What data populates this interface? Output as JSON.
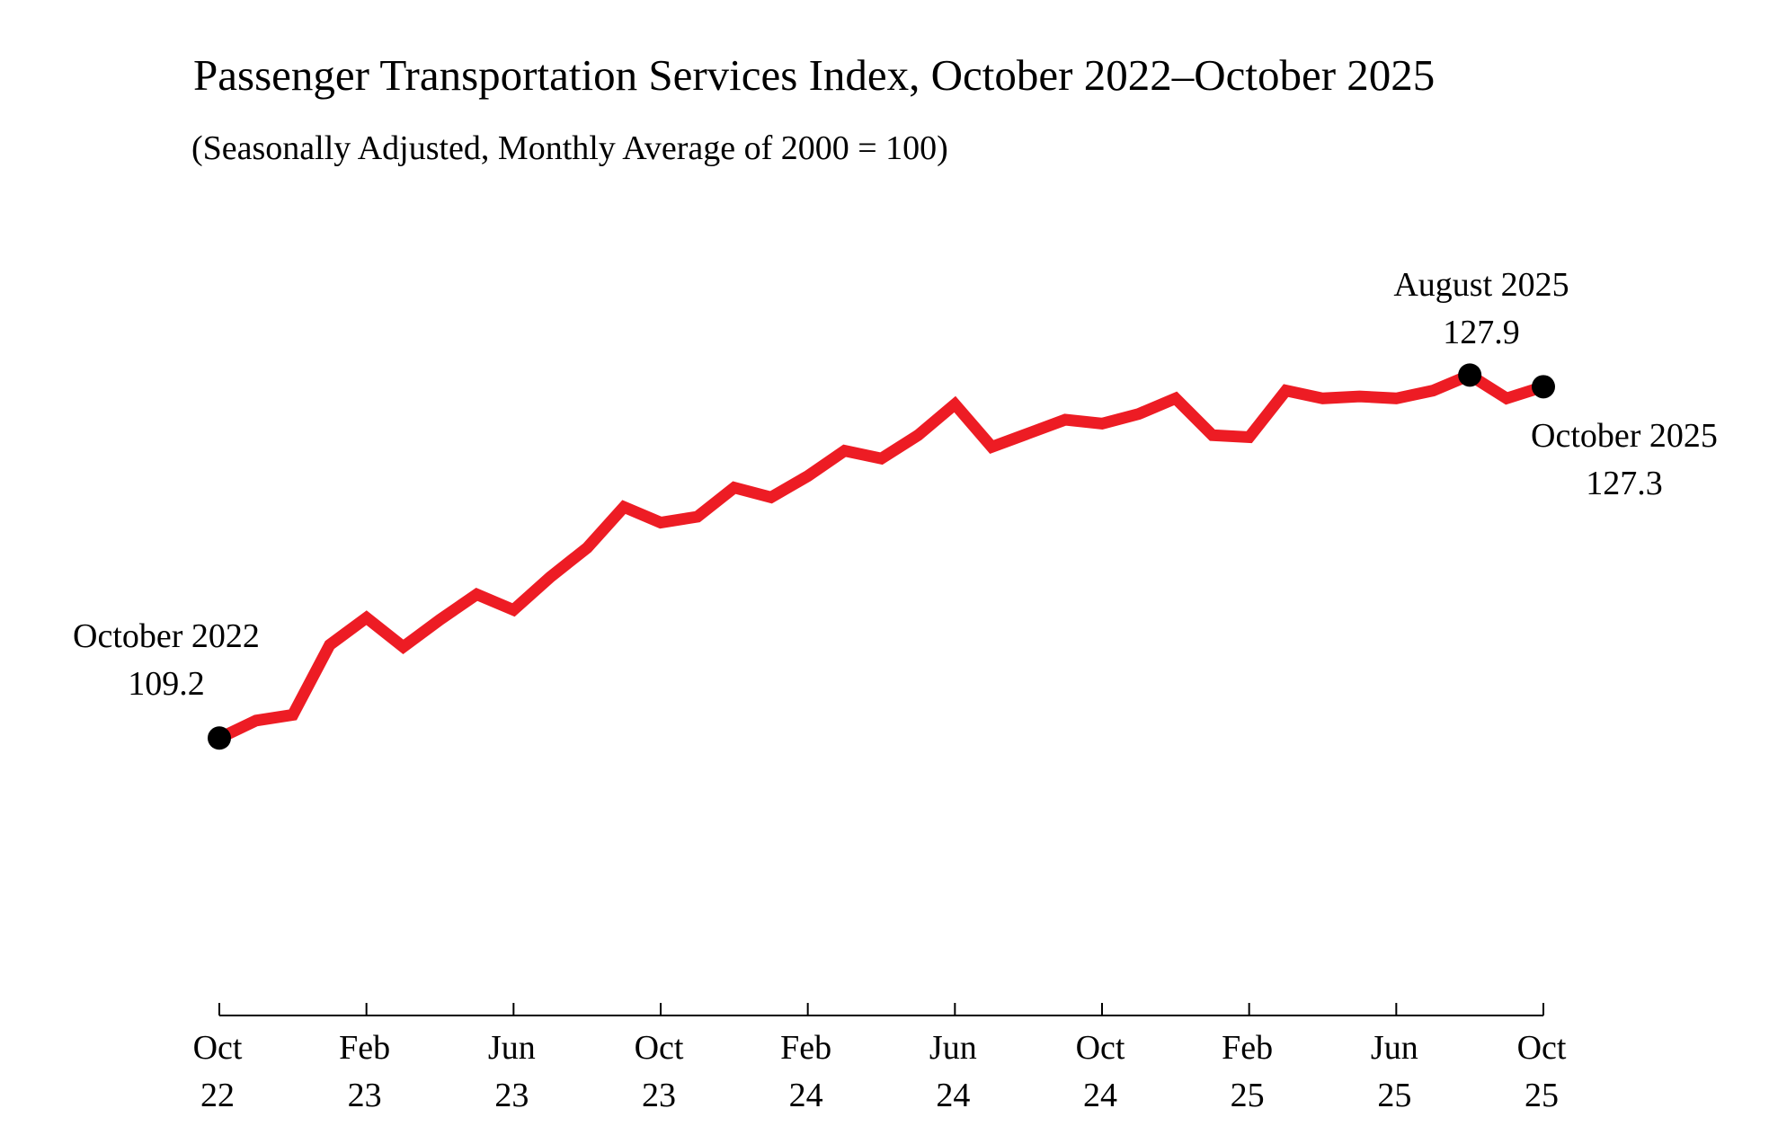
{
  "chart_data": {
    "type": "line",
    "title": "Passenger Transportation Services Index, October 2022–October 2025",
    "subtitle": "(Seasonally Adjusted, Monthly Average of 2000 = 100)",
    "xlabel": "",
    "ylabel": "",
    "ylim": [
      95,
      130
    ],
    "grid": false,
    "line_color": "#ED1C24",
    "marker_color": "#000000",
    "x": [
      "2022-10",
      "2022-11",
      "2022-12",
      "2023-01",
      "2023-02",
      "2023-03",
      "2023-04",
      "2023-05",
      "2023-06",
      "2023-07",
      "2023-08",
      "2023-09",
      "2023-10",
      "2023-11",
      "2023-12",
      "2024-01",
      "2024-02",
      "2024-03",
      "2024-04",
      "2024-05",
      "2024-06",
      "2024-07",
      "2024-08",
      "2024-09",
      "2024-10",
      "2024-11",
      "2024-12",
      "2025-01",
      "2025-02",
      "2025-03",
      "2025-04",
      "2025-05",
      "2025-06",
      "2025-07",
      "2025-08",
      "2025-09",
      "2025-10"
    ],
    "values": [
      109.2,
      110.1,
      110.4,
      114.0,
      115.4,
      113.9,
      115.3,
      116.6,
      115.8,
      117.5,
      119.0,
      121.1,
      120.3,
      120.6,
      122.1,
      121.6,
      122.7,
      124.0,
      123.6,
      124.8,
      126.4,
      124.2,
      124.9,
      125.6,
      125.4,
      125.9,
      126.7,
      124.8,
      124.7,
      127.1,
      126.7,
      126.8,
      126.7,
      127.1,
      127.9,
      126.7,
      127.3
    ],
    "x_ticks": [
      {
        "index": 0,
        "line1": "Oct",
        "line2": "22"
      },
      {
        "index": 4,
        "line1": "Feb",
        "line2": "23"
      },
      {
        "index": 8,
        "line1": "Jun",
        "line2": "23"
      },
      {
        "index": 12,
        "line1": "Oct",
        "line2": "23"
      },
      {
        "index": 16,
        "line1": "Feb",
        "line2": "24"
      },
      {
        "index": 20,
        "line1": "Jun",
        "line2": "24"
      },
      {
        "index": 24,
        "line1": "Oct",
        "line2": "24"
      },
      {
        "index": 28,
        "line1": "Feb",
        "line2": "25"
      },
      {
        "index": 32,
        "line1": "Jun",
        "line2": "25"
      },
      {
        "index": 36,
        "line1": "Oct",
        "line2": "25"
      }
    ],
    "annotations": [
      {
        "index": 0,
        "label": "October 2022",
        "value": "109.2"
      },
      {
        "index": 34,
        "label": "August 2025",
        "value": "127.9"
      },
      {
        "index": 36,
        "label": "October 2025",
        "value": "127.3"
      }
    ]
  }
}
